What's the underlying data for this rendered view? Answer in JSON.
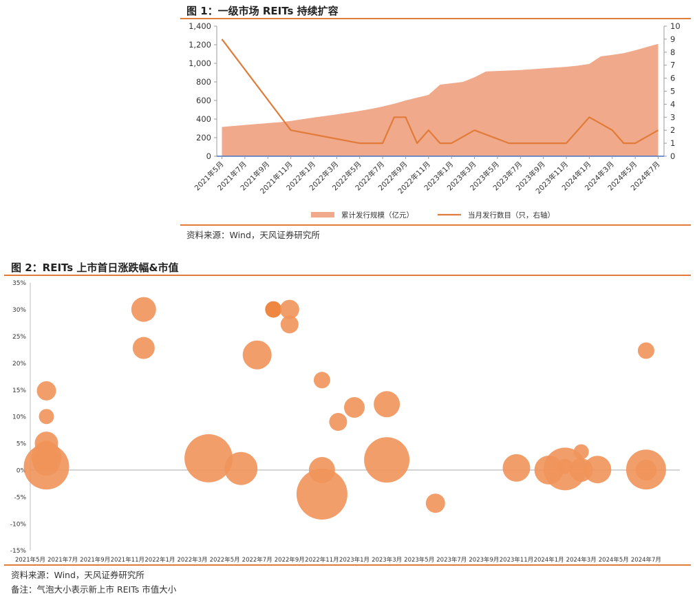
{
  "figure1": {
    "title": "图 1：一级市场 REITs 持续扩容",
    "source": "资料来源：Wind，天风证券研究所",
    "chart_data": {
      "type": "area",
      "categories": [
        "2021年5月",
        "2021年6月",
        "2021年7月",
        "2021年8月",
        "2021年9月",
        "2021年10月",
        "2021年11月",
        "2021年12月",
        "2022年1月",
        "2022年2月",
        "2022年3月",
        "2022年4月",
        "2022年5月",
        "2022年6月",
        "2022年7月",
        "2022年8月",
        "2022年9月",
        "2022年10月",
        "2022年11月",
        "2022年12月",
        "2023年1月",
        "2023年2月",
        "2023年3月",
        "2023年4月",
        "2023年5月",
        "2023年6月",
        "2023年7月",
        "2023年8月",
        "2023年9月",
        "2023年10月",
        "2023年11月",
        "2023年12月",
        "2024年1月",
        "2024年2月",
        "2024年3月",
        "2024年4月",
        "2024年5月",
        "2024年6月",
        "2024年7月"
      ],
      "x_tick_labels": [
        "2021年5月",
        "2021年7月",
        "2021年9月",
        "2021年11月",
        "2022年1月",
        "2022年3月",
        "2022年5月",
        "2022年7月",
        "2022年9月",
        "2022年11月",
        "2023年1月",
        "2023年3月",
        "2023年5月",
        "2023年7月",
        "2023年9月",
        "2023年11月",
        "2024年1月",
        "2024年3月",
        "2024年5月",
        "2024年7月"
      ],
      "series": [
        {
          "name": "累计发行规模（亿元）",
          "type": "area",
          "axis": "left",
          "color": "#f0a98a",
          "values": [
            315,
            326,
            336,
            346,
            356,
            366,
            380,
            398,
            416,
            433,
            450,
            468,
            488,
            510,
            535,
            565,
            600,
            630,
            660,
            770,
            785,
            800,
            850,
            912,
            918,
            922,
            928,
            936,
            945,
            953,
            962,
            975,
            993,
            1075,
            1090,
            1110,
            1140,
            1175,
            1210
          ]
        },
        {
          "name": "当月发行数目（只，右轴）",
          "type": "line",
          "axis": "right",
          "color": "#e07b39",
          "values": [
            9,
            null,
            null,
            null,
            null,
            null,
            2,
            null,
            null,
            null,
            null,
            null,
            1,
            null,
            1,
            3,
            3,
            1,
            2,
            1,
            1,
            null,
            2,
            null,
            null,
            1,
            null,
            null,
            null,
            1,
            1,
            null,
            3,
            null,
            2,
            1,
            1,
            null,
            2
          ]
        }
      ],
      "y_left": {
        "min": 0,
        "max": 1400,
        "ticks": [
          "0",
          "200",
          "400",
          "600",
          "800",
          "1,000",
          "1,200",
          "1,400"
        ]
      },
      "y_right": {
        "min": 0,
        "max": 10,
        "ticks": [
          "0",
          "1",
          "2",
          "3",
          "4",
          "5",
          "6",
          "7",
          "8",
          "9",
          "10"
        ]
      },
      "legend_position": "bottom",
      "grid": false
    }
  },
  "figure2": {
    "title": "图 2：REITs 上市首日涨跌幅&市值",
    "source": "资料来源：Wind，天风证券研究所",
    "note": "备注：气泡大小表示新上市 REITs 市值大小",
    "chart_data": {
      "type": "scatter",
      "x_tick_labels": [
        "2021年5月",
        "2021年7月",
        "2021年9月",
        "2021年11月",
        "2022年1月",
        "2022年3月",
        "2022年5月",
        "2022年7月",
        "2022年9月",
        "2022年11月",
        "2023年1月",
        "2023年3月",
        "2023年5月",
        "2023年7月",
        "2023年9月",
        "2023年11月",
        "2024年1月",
        "2024年3月",
        "2024年5月",
        "2024年7月"
      ],
      "y_ticks": [
        "-15%",
        "-10%",
        "-5%",
        "0%",
        "5%",
        "10%",
        "15%",
        "20%",
        "25%",
        "30%",
        "35%"
      ],
      "y_range": [
        -15,
        35
      ],
      "color": "#f0945a",
      "highlight_color": "#ec7a2c",
      "points": [
        {
          "x": "2021年6月",
          "y": 14.8,
          "size": 14
        },
        {
          "x": "2021年6月",
          "y": 10.0,
          "size": 11
        },
        {
          "x": "2021年6月",
          "y": 5.0,
          "size": 17
        },
        {
          "x": "2021年6月",
          "y": 4.0,
          "size": 12
        },
        {
          "x": "2021年6月",
          "y": 2.5,
          "size": 22
        },
        {
          "x": "2021年6月",
          "y": 1.5,
          "size": 20
        },
        {
          "x": "2021年6月",
          "y": 0.6,
          "size": 33
        },
        {
          "x": "2021年12月",
          "y": 30.0,
          "size": 18
        },
        {
          "x": "2021年12月",
          "y": 22.8,
          "size": 16
        },
        {
          "x": "2022年4月",
          "y": 2.2,
          "size": 35
        },
        {
          "x": "2022年6月",
          "y": 0.3,
          "size": 24
        },
        {
          "x": "2022年7月",
          "y": 21.5,
          "size": 21
        },
        {
          "x": "2022年8月",
          "y": 30.0,
          "size": 12,
          "highlight": true
        },
        {
          "x": "2022年9月",
          "y": 30.0,
          "size": 14
        },
        {
          "x": "2022年9月",
          "y": 27.2,
          "size": 13
        },
        {
          "x": "2022年11月",
          "y": 0.0,
          "size": 19
        },
        {
          "x": "2022年11月",
          "y": -4.5,
          "size": 37
        },
        {
          "x": "2022年11月",
          "y": 16.8,
          "size": 12
        },
        {
          "x": "2022年12月",
          "y": 9.0,
          "size": 13
        },
        {
          "x": "2023年1月",
          "y": 11.7,
          "size": 15
        },
        {
          "x": "2023年3月",
          "y": 12.3,
          "size": 19
        },
        {
          "x": "2023年3月",
          "y": 1.9,
          "size": 33
        },
        {
          "x": "2023年6月",
          "y": -6.2,
          "size": 14
        },
        {
          "x": "2023年11月",
          "y": 0.4,
          "size": 20
        },
        {
          "x": "2024年1月",
          "y": 0.0,
          "size": 21
        },
        {
          "x": "2024年2月",
          "y": 0.7,
          "size": 11
        },
        {
          "x": "2024年2月",
          "y": 0.2,
          "size": 31
        },
        {
          "x": "2024年3月",
          "y": 3.4,
          "size": 11
        },
        {
          "x": "2024年3月",
          "y": 0.0,
          "size": 17
        },
        {
          "x": "2024年4月",
          "y": 0.1,
          "size": 20
        },
        {
          "x": "2024年7月",
          "y": 0.1,
          "size": 29
        },
        {
          "x": "2024年7月",
          "y": 0.0,
          "size": 15
        },
        {
          "x": "2024年7月",
          "y": 22.3,
          "size": 12
        }
      ]
    }
  }
}
